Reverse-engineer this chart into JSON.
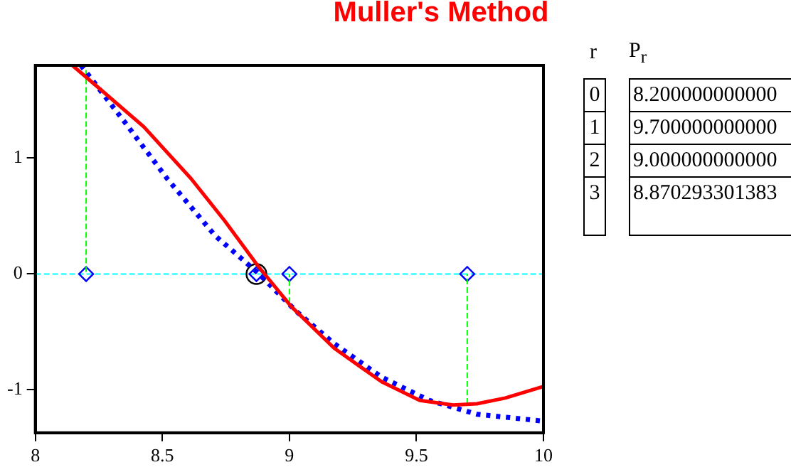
{
  "chart_data": {
    "type": "line",
    "title": "Muller's Method",
    "xlim": [
      8,
      10
    ],
    "xticks": [
      8,
      8.5,
      9,
      9.5,
      10
    ],
    "ylim": [
      -1.37,
      1.8
    ],
    "yticks": [
      -1,
      0,
      1
    ],
    "grid": false,
    "legend": false,
    "series": [
      {
        "color": "#ff0000",
        "marker": "none",
        "line_style": "solid",
        "x": [
          8.146,
          8.258,
          8.427,
          8.614,
          8.745,
          8.876,
          9.007,
          9.176,
          9.363,
          9.513,
          9.644,
          9.738,
          9.85,
          10
        ],
        "values": [
          1.8,
          1.59,
          1.27,
          0.82,
          0.46,
          0.07,
          -0.28,
          -0.64,
          -0.93,
          -1.09,
          -1.13,
          -1.12,
          -1.07,
          -0.97
        ]
      },
      {
        "color": "#0000ff",
        "marker": "none",
        "line_style": "dotted",
        "x": [
          8.18,
          8.352,
          8.52,
          8.708,
          8.876,
          9.026,
          9.176,
          9.363,
          9.55,
          9.738,
          10
        ],
        "values": [
          1.8,
          1.31,
          0.82,
          0.33,
          0.01,
          -0.32,
          -0.6,
          -0.89,
          -1.09,
          -1.21,
          -1.27
        ]
      },
      {
        "color": "#00ff00",
        "marker": "none",
        "line_style": "dashed",
        "x": [
          8.2,
          8.2
        ],
        "values": [
          1.76,
          0
        ]
      },
      {
        "color": "#00ff00",
        "marker": "none",
        "line_style": "dashed",
        "x": [
          9.7,
          9.7
        ],
        "values": [
          -1.12,
          0
        ]
      },
      {
        "color": "#00ff00",
        "marker": "none",
        "line_style": "dashed",
        "x": [
          9,
          9
        ],
        "values": [
          -0.25,
          0
        ]
      },
      {
        "type": "scatter",
        "color": "#0000ff",
        "marker": "diamond",
        "x": [
          8.2,
          9.7,
          9,
          8.870293301383
        ],
        "values": [
          0,
          0,
          0,
          0
        ]
      },
      {
        "type": "scatter",
        "color": "#000000",
        "marker": "circle",
        "x": [
          8.870293301383
        ],
        "values": [
          0
        ]
      }
    ],
    "ref_lines": [
      {
        "axis": "y",
        "value": 0,
        "color": "#00ffff",
        "line_style": "dashed"
      }
    ],
    "annotations": [
      "r",
      "P$_{r}$",
      "0",
      "8.200000000000",
      "1",
      "9.700000000000",
      "2",
      "9.000000000000",
      "3",
      "8.870293301383"
    ]
  }
}
